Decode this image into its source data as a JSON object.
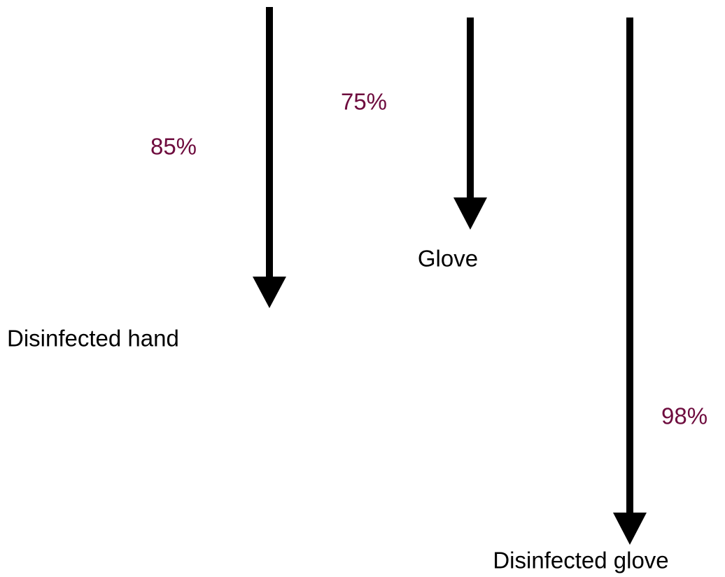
{
  "arrows": [
    {
      "percent": "85%",
      "label": "Disinfected hand"
    },
    {
      "percent": "75%",
      "label": "Glove"
    },
    {
      "percent": "98%",
      "label": "Disinfected glove"
    }
  ]
}
